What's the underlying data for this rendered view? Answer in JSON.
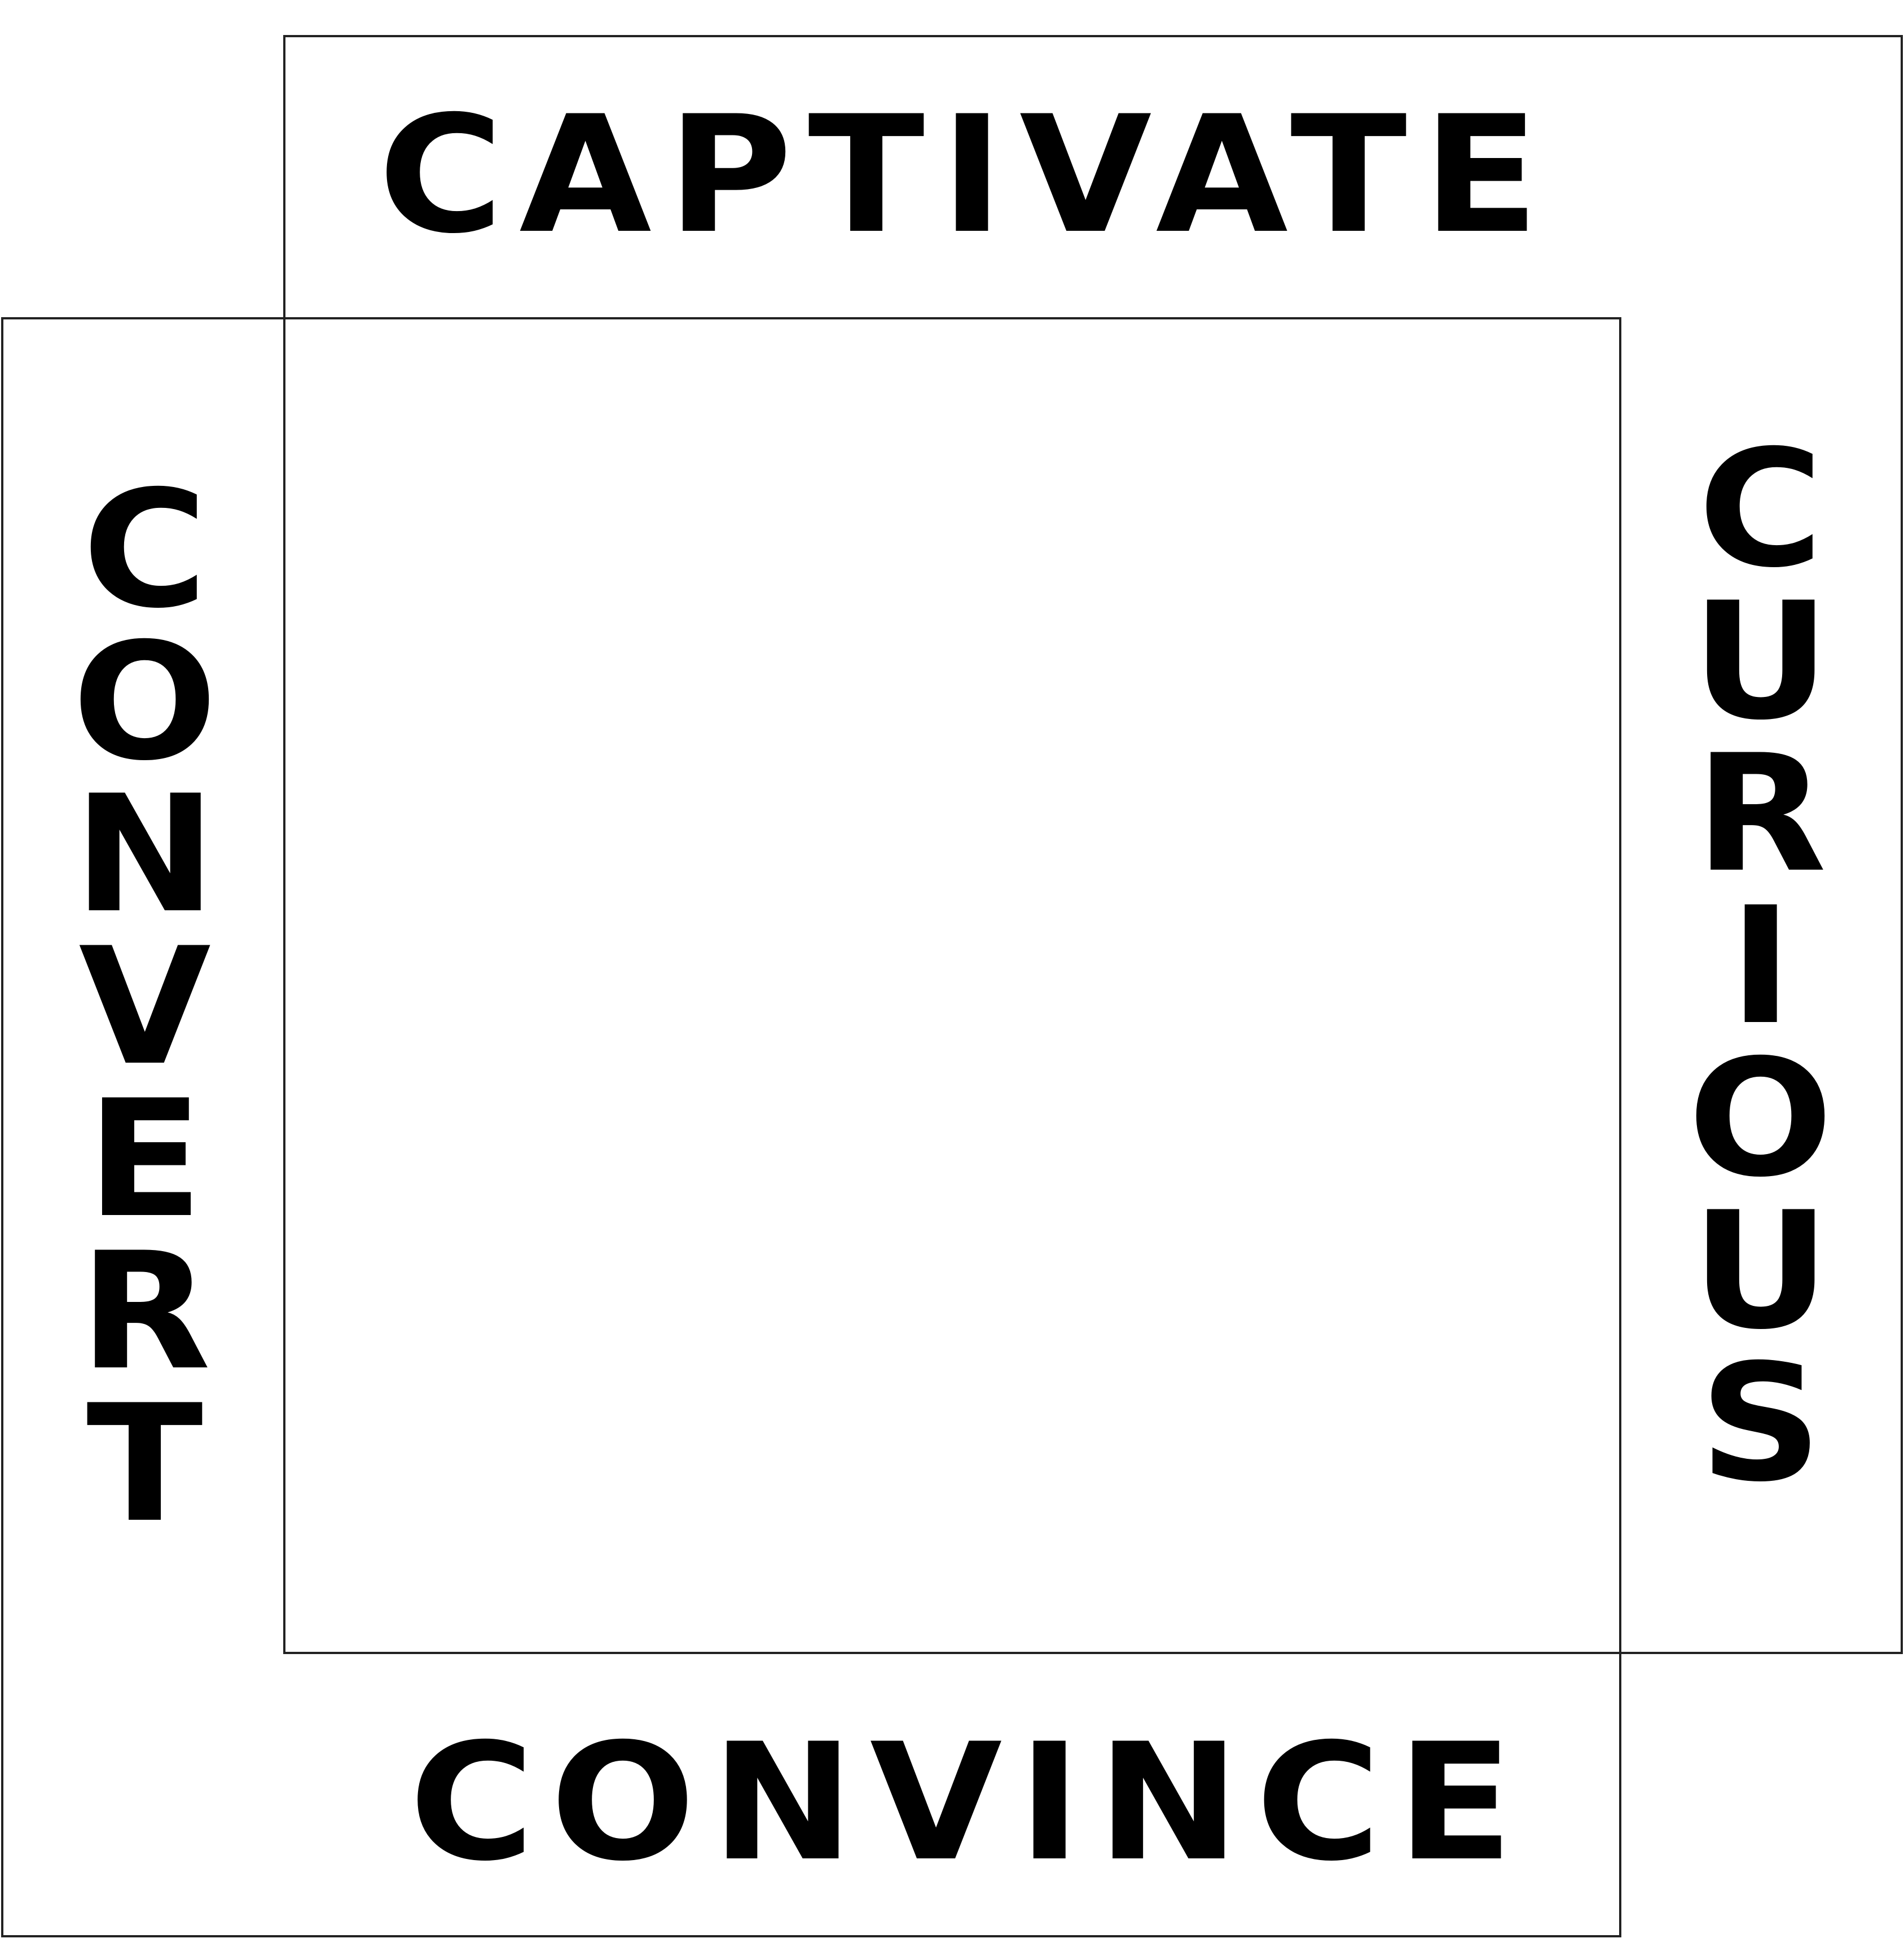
{
  "words": {
    "top": "CAPTIVATE",
    "bottom": "CONVINCE",
    "left": "CONVERT",
    "right": "CURIOUS"
  },
  "left_letters": [
    "C",
    "O",
    "N",
    "V",
    "E",
    "R",
    "T"
  ],
  "right_letters": [
    "C",
    "U",
    "R",
    "I",
    "O",
    "U",
    "S"
  ],
  "colors": {
    "text": "#000000",
    "frame_stroke": "#222222",
    "background": "#ffffff"
  }
}
